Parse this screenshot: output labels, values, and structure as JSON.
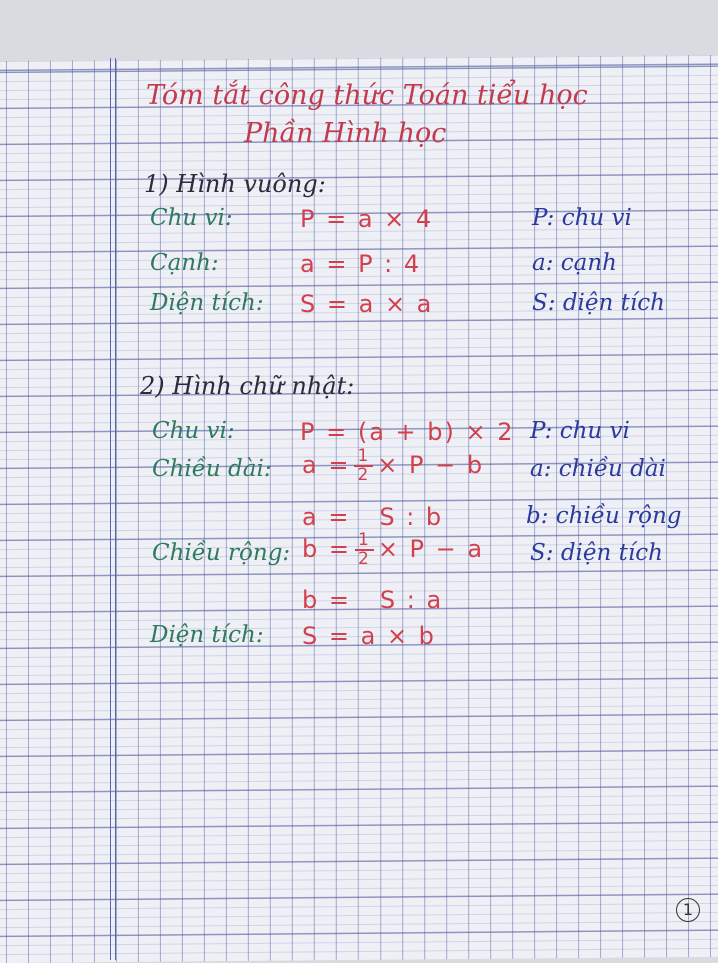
{
  "title": {
    "line1": "Tóm tắt công thức Toán tiểu học",
    "line2": "Phần Hình học"
  },
  "section1": {
    "heading": "1) Hình vuông:",
    "rows": [
      {
        "label": "Chu vi:",
        "formula": "P = a × 4",
        "definition": "P: chu vi"
      },
      {
        "label": "Cạnh:",
        "formula": "a = P : 4",
        "definition": "a: cạnh"
      },
      {
        "label": "Diện tích:",
        "formula": "S = a × a",
        "definition": "S: diện tích"
      }
    ]
  },
  "section2": {
    "heading": "2) Hình chữ nhật:",
    "perimeter": {
      "label": "Chu vi:",
      "formula": "P = (a + b) × 2",
      "definition": "P: chu vi"
    },
    "length": {
      "label": "Chiều dài:",
      "formula1": {
        "left": "a =",
        "num": "1",
        "den": "2",
        "right": "× P − b"
      },
      "formula2": "a =   S : b",
      "definition1": "a: chiều dài",
      "definition2": "b: chiều rộng"
    },
    "width": {
      "label": "Chiều rộng:",
      "formula1": {
        "left": "b =",
        "num": "1",
        "den": "2",
        "right": "× P − a"
      },
      "formula2": "b =   S : a",
      "definition1": "S: diện tích"
    },
    "area": {
      "label": "Diện tích:",
      "formula": "S = a × b"
    }
  },
  "page_number": "1",
  "colors": {
    "title": "#c23a4e",
    "label": "#2f7a5e",
    "formula": "#d2404e",
    "definition": "#2c3a9c"
  }
}
